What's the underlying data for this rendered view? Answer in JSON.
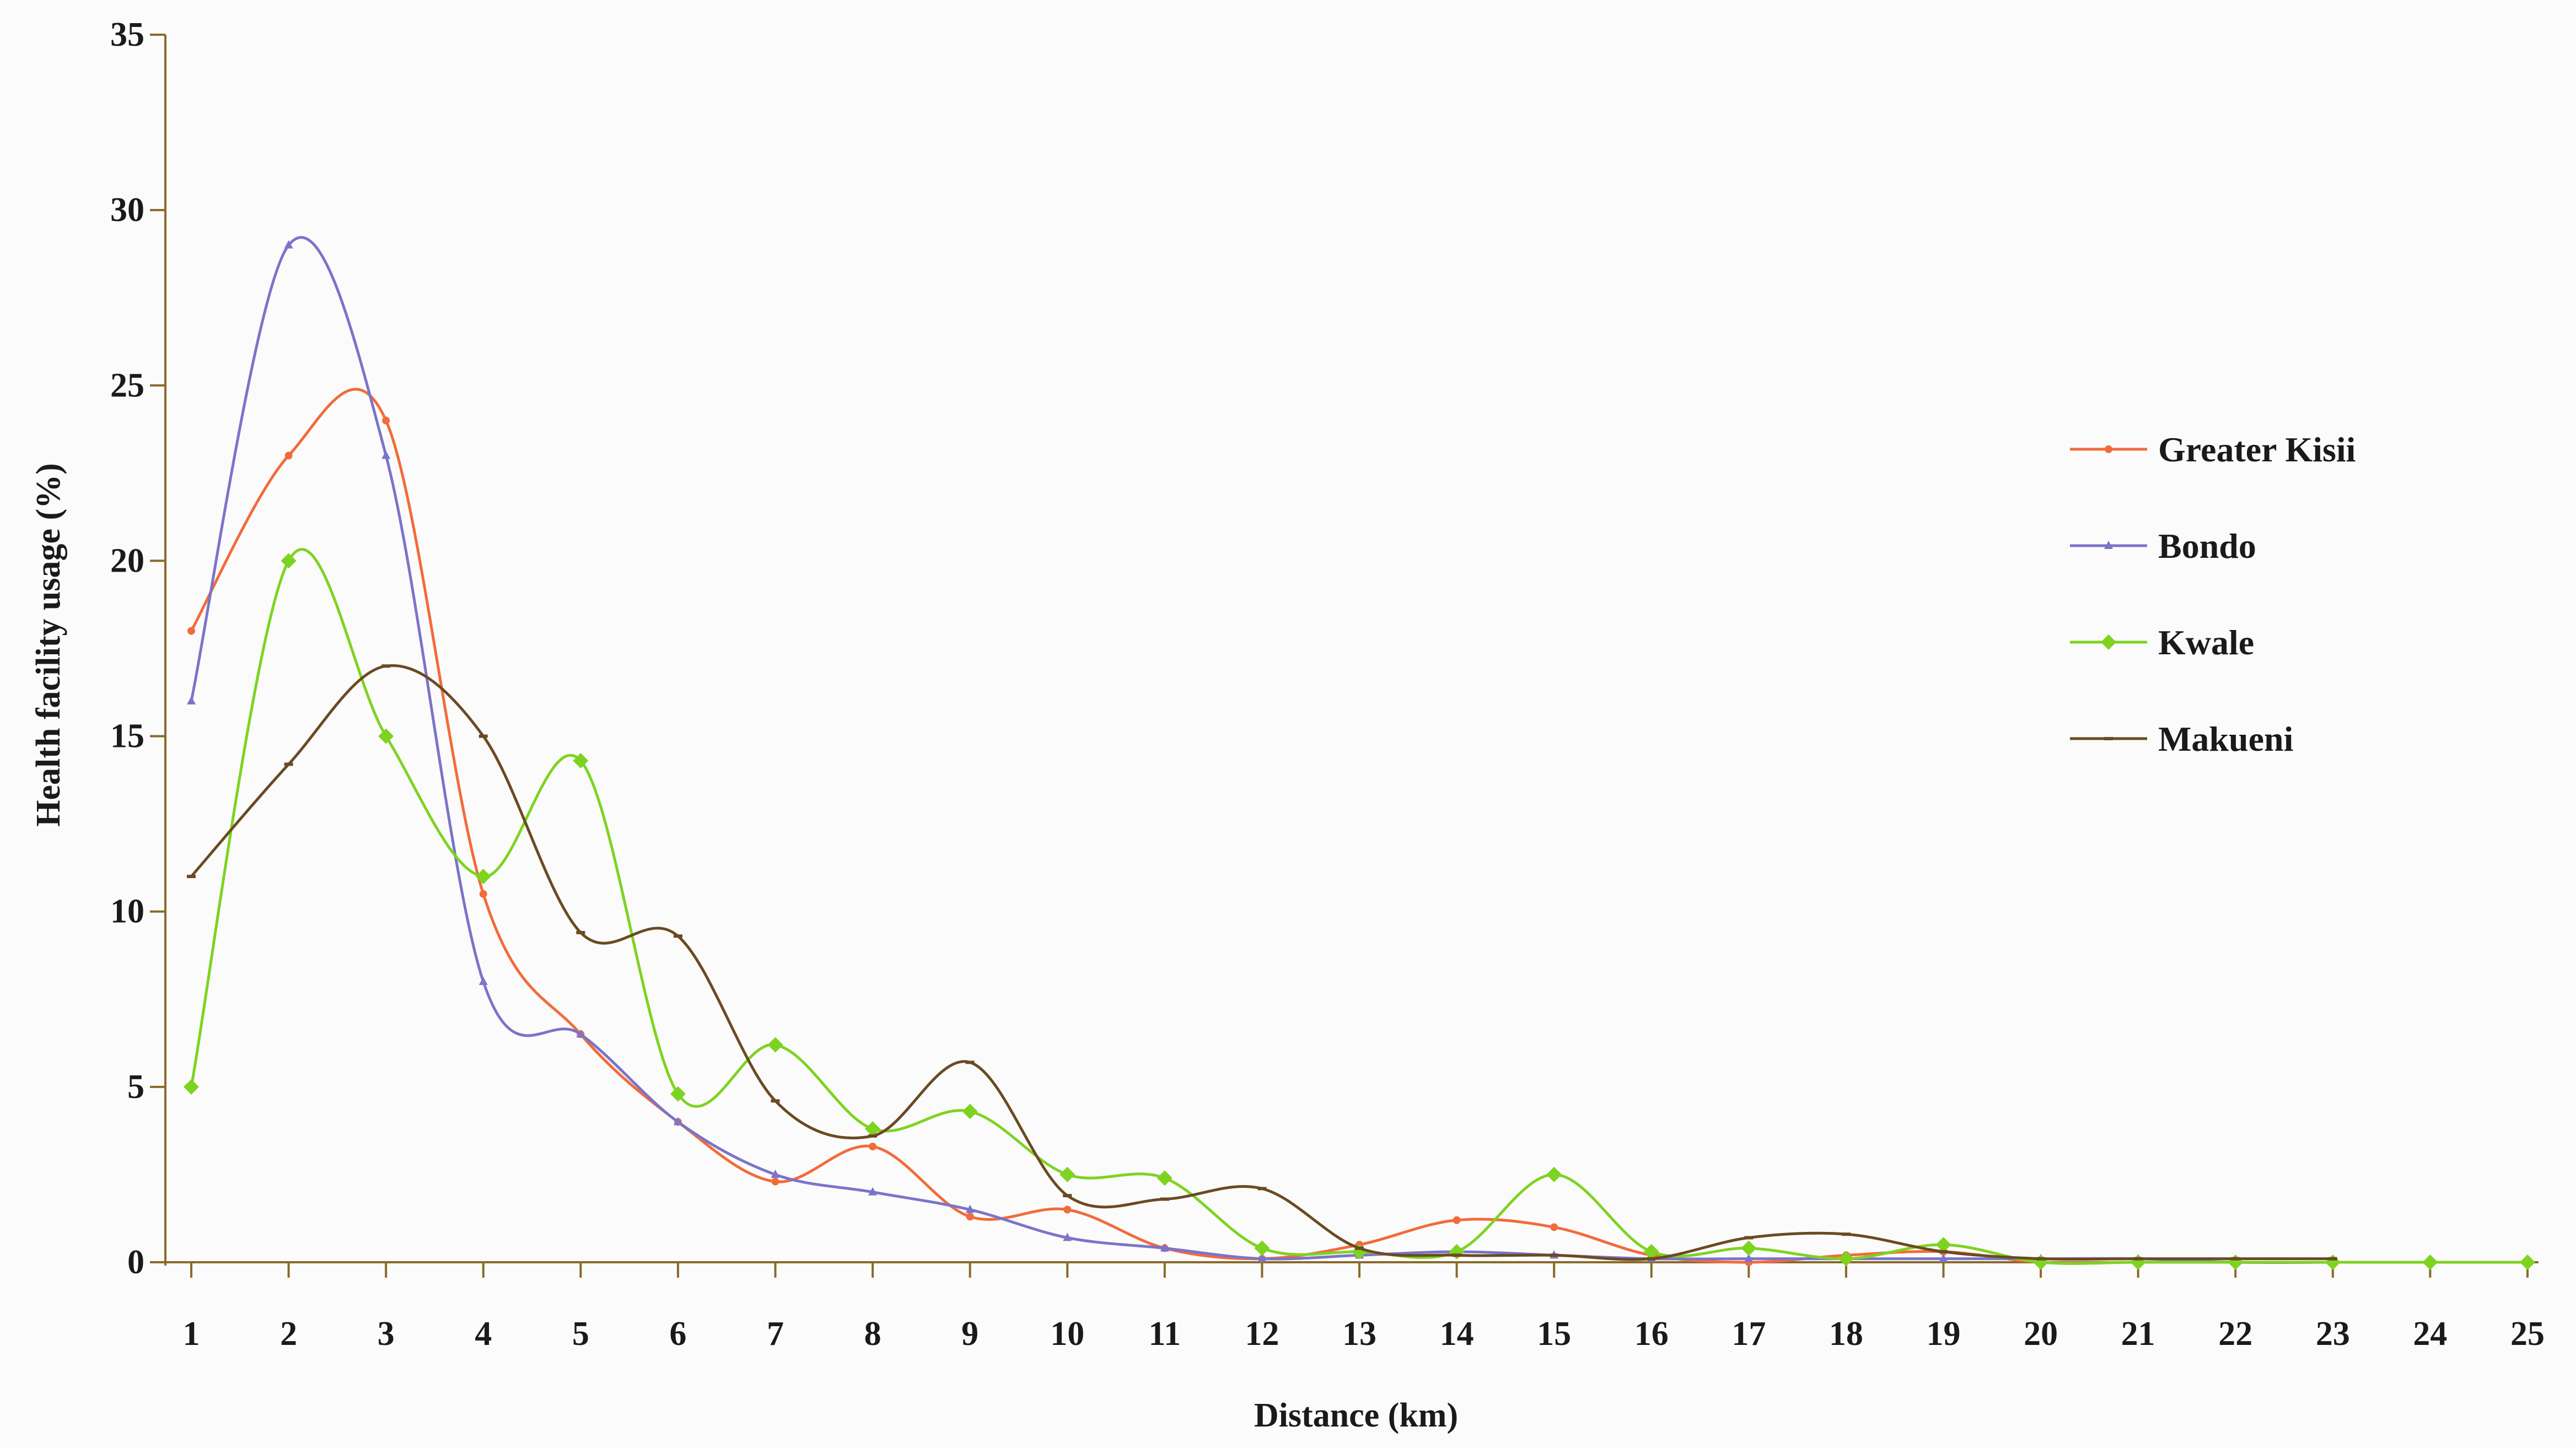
{
  "chart_data": {
    "type": "line",
    "xlabel": "Distance (km)",
    "ylabel": "Health facility usage (%)",
    "xlim": [
      1,
      25
    ],
    "ylim": [
      0,
      35
    ],
    "x_ticks": [
      "1",
      "2",
      "3",
      "4",
      "5",
      "6",
      "7",
      "8",
      "9",
      "10",
      "11",
      "12",
      "13",
      "14",
      "15",
      "16",
      "17",
      "18",
      "19",
      "20",
      "21",
      "22",
      "23",
      "24",
      "25"
    ],
    "y_ticks": [
      "0",
      "5",
      "10",
      "15",
      "20",
      "25",
      "30",
      "35"
    ],
    "legend_position": "right",
    "grid": false,
    "series": [
      {
        "name": "Greater Kisii",
        "color": "#f26b3a",
        "marker": "dot",
        "values": [
          18,
          23,
          24,
          10.5,
          6.5,
          4,
          2.3,
          3.3,
          1.3,
          1.5,
          0.4,
          0.1,
          0.5,
          1.2,
          1,
          0.2,
          0,
          0.2,
          0.3,
          0,
          0,
          0,
          0,
          null,
          null
        ]
      },
      {
        "name": "Bondo",
        "color": "#7b74c9",
        "marker": "triangle",
        "values": [
          16,
          29,
          23,
          8,
          6.5,
          4,
          2.5,
          2,
          1.5,
          0.7,
          0.4,
          0.1,
          0.2,
          0.3,
          0.2,
          0.1,
          0.1,
          0.1,
          0.1,
          0.1,
          0.1,
          0,
          0,
          null,
          null
        ]
      },
      {
        "name": "Kwale",
        "color": "#7ed321",
        "marker": "diamond",
        "values": [
          5,
          20,
          15,
          11,
          14.3,
          4.8,
          6.2,
          3.8,
          4.3,
          2.5,
          2.4,
          0.4,
          0.3,
          0.3,
          2.5,
          0.3,
          0.4,
          0.1,
          0.5,
          0,
          0,
          0,
          0,
          0,
          0
        ]
      },
      {
        "name": "Makueni",
        "color": "#6b4a22",
        "marker": "dash",
        "values": [
          11,
          14.2,
          17,
          15,
          9.4,
          9.3,
          4.6,
          3.6,
          5.7,
          1.9,
          1.8,
          2.1,
          0.4,
          0.2,
          0.2,
          0.1,
          0.7,
          0.8,
          0.3,
          0.1,
          0.1,
          0.1,
          0.1,
          null,
          null
        ]
      }
    ]
  }
}
